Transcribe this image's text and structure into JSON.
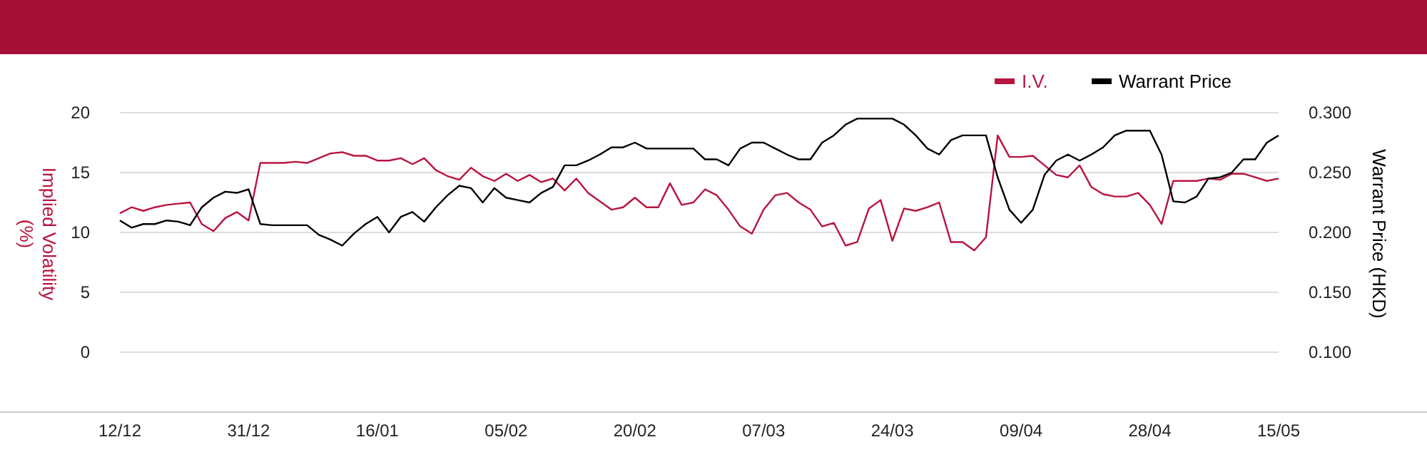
{
  "chart_data": {
    "type": "line",
    "ylabel": "Implied Volatility (%)",
    "y2label": "Warrant Price (HKD)",
    "categories": [
      "12/12",
      null,
      null,
      null,
      null,
      null,
      null,
      null,
      null,
      null,
      null,
      "31/12",
      null,
      null,
      null,
      null,
      null,
      null,
      null,
      null,
      null,
      null,
      "16/01",
      null,
      null,
      null,
      null,
      null,
      null,
      null,
      null,
      null,
      null,
      "05/02",
      null,
      null,
      null,
      null,
      null,
      null,
      null,
      null,
      null,
      null,
      "20/02",
      null,
      null,
      null,
      null,
      null,
      null,
      null,
      null,
      null,
      null,
      "07/03",
      null,
      null,
      null,
      null,
      null,
      null,
      null,
      null,
      null,
      null,
      "24/03",
      null,
      null,
      null,
      null,
      null,
      null,
      null,
      null,
      null,
      null,
      "09/04",
      null,
      null,
      null,
      null,
      null,
      null,
      null,
      null,
      null,
      null,
      "28/04",
      null,
      null,
      null,
      null,
      null,
      null,
      null,
      null,
      null,
      null,
      "15/05"
    ],
    "ylim": [
      -5,
      20
    ],
    "yticks": [
      0,
      5,
      10,
      15,
      20
    ],
    "y2lim": [
      0.05,
      0.3
    ],
    "y2ticks": [
      {
        "value": 0.1,
        "label": "0.100"
      },
      {
        "value": 0.15,
        "label": "0.150"
      },
      {
        "value": 0.2,
        "label": "0.200"
      },
      {
        "value": 0.25,
        "label": "0.250"
      },
      {
        "value": 0.3,
        "label": "0.300"
      }
    ],
    "grid": "y",
    "legend": "top right",
    "marker": "none",
    "line_style": "solid",
    "series": [
      {
        "name": "I.V.",
        "color": "#b8143f",
        "values": [
          11.6,
          12.1,
          11.8,
          12.1,
          12.3,
          12.4,
          12.5,
          10.7,
          10.1,
          11.2,
          11.7,
          11.0,
          15.8,
          15.8,
          15.8,
          15.9,
          15.8,
          16.2,
          16.6,
          16.7,
          16.4,
          16.4,
          16.0,
          16.0,
          16.2,
          15.7,
          16.2,
          15.2,
          14.7,
          14.4,
          15.4,
          14.7,
          14.3,
          14.9,
          14.3,
          14.8,
          14.2,
          14.5,
          13.5,
          14.5,
          13.3,
          12.6,
          11.9,
          12.1,
          12.9,
          12.1,
          12.1,
          14.1,
          12.3,
          12.5,
          13.6,
          13.1,
          11.9,
          10.5,
          9.9,
          11.9,
          13.1,
          13.3,
          12.5,
          11.9,
          10.5,
          10.8,
          8.9,
          9.2,
          12.0,
          12.7,
          9.3,
          12.0,
          11.8,
          12.1,
          12.5,
          9.2,
          9.2,
          8.5,
          9.6,
          18.1,
          16.3,
          16.3,
          16.4,
          15.6,
          14.8,
          14.6,
          15.6,
          13.8,
          13.2,
          13.0,
          13.0,
          13.3,
          12.3,
          10.7,
          14.3,
          14.3,
          14.3,
          14.5,
          14.4,
          14.9,
          14.9,
          14.6,
          14.3,
          14.5
        ]
      },
      {
        "name": "Warrant Price",
        "color": "#000000",
        "axis": "y2",
        "values": [
          0.21,
          0.204,
          0.207,
          0.207,
          0.21,
          0.209,
          0.206,
          0.221,
          0.229,
          0.234,
          0.233,
          0.236,
          0.207,
          0.206,
          0.206,
          0.206,
          0.206,
          0.198,
          0.194,
          0.189,
          0.199,
          0.207,
          0.213,
          0.2,
          0.213,
          0.217,
          0.209,
          0.221,
          0.231,
          0.239,
          0.237,
          0.225,
          0.237,
          0.229,
          0.227,
          0.225,
          0.233,
          0.238,
          0.256,
          0.256,
          0.26,
          0.265,
          0.271,
          0.271,
          0.275,
          0.27,
          0.27,
          0.27,
          0.27,
          0.27,
          0.261,
          0.261,
          0.256,
          0.27,
          0.275,
          0.275,
          0.27,
          0.265,
          0.261,
          0.261,
          0.275,
          0.281,
          0.29,
          0.295,
          0.295,
          0.295,
          0.295,
          0.29,
          0.281,
          0.27,
          0.265,
          0.277,
          0.281,
          0.281,
          0.281,
          0.246,
          0.219,
          0.208,
          0.219,
          0.248,
          0.26,
          0.265,
          0.26,
          0.265,
          0.271,
          0.281,
          0.285,
          0.285,
          0.285,
          0.265,
          0.226,
          0.225,
          0.23,
          0.245,
          0.246,
          0.25,
          0.261,
          0.261,
          0.275,
          0.281
        ]
      }
    ]
  }
}
